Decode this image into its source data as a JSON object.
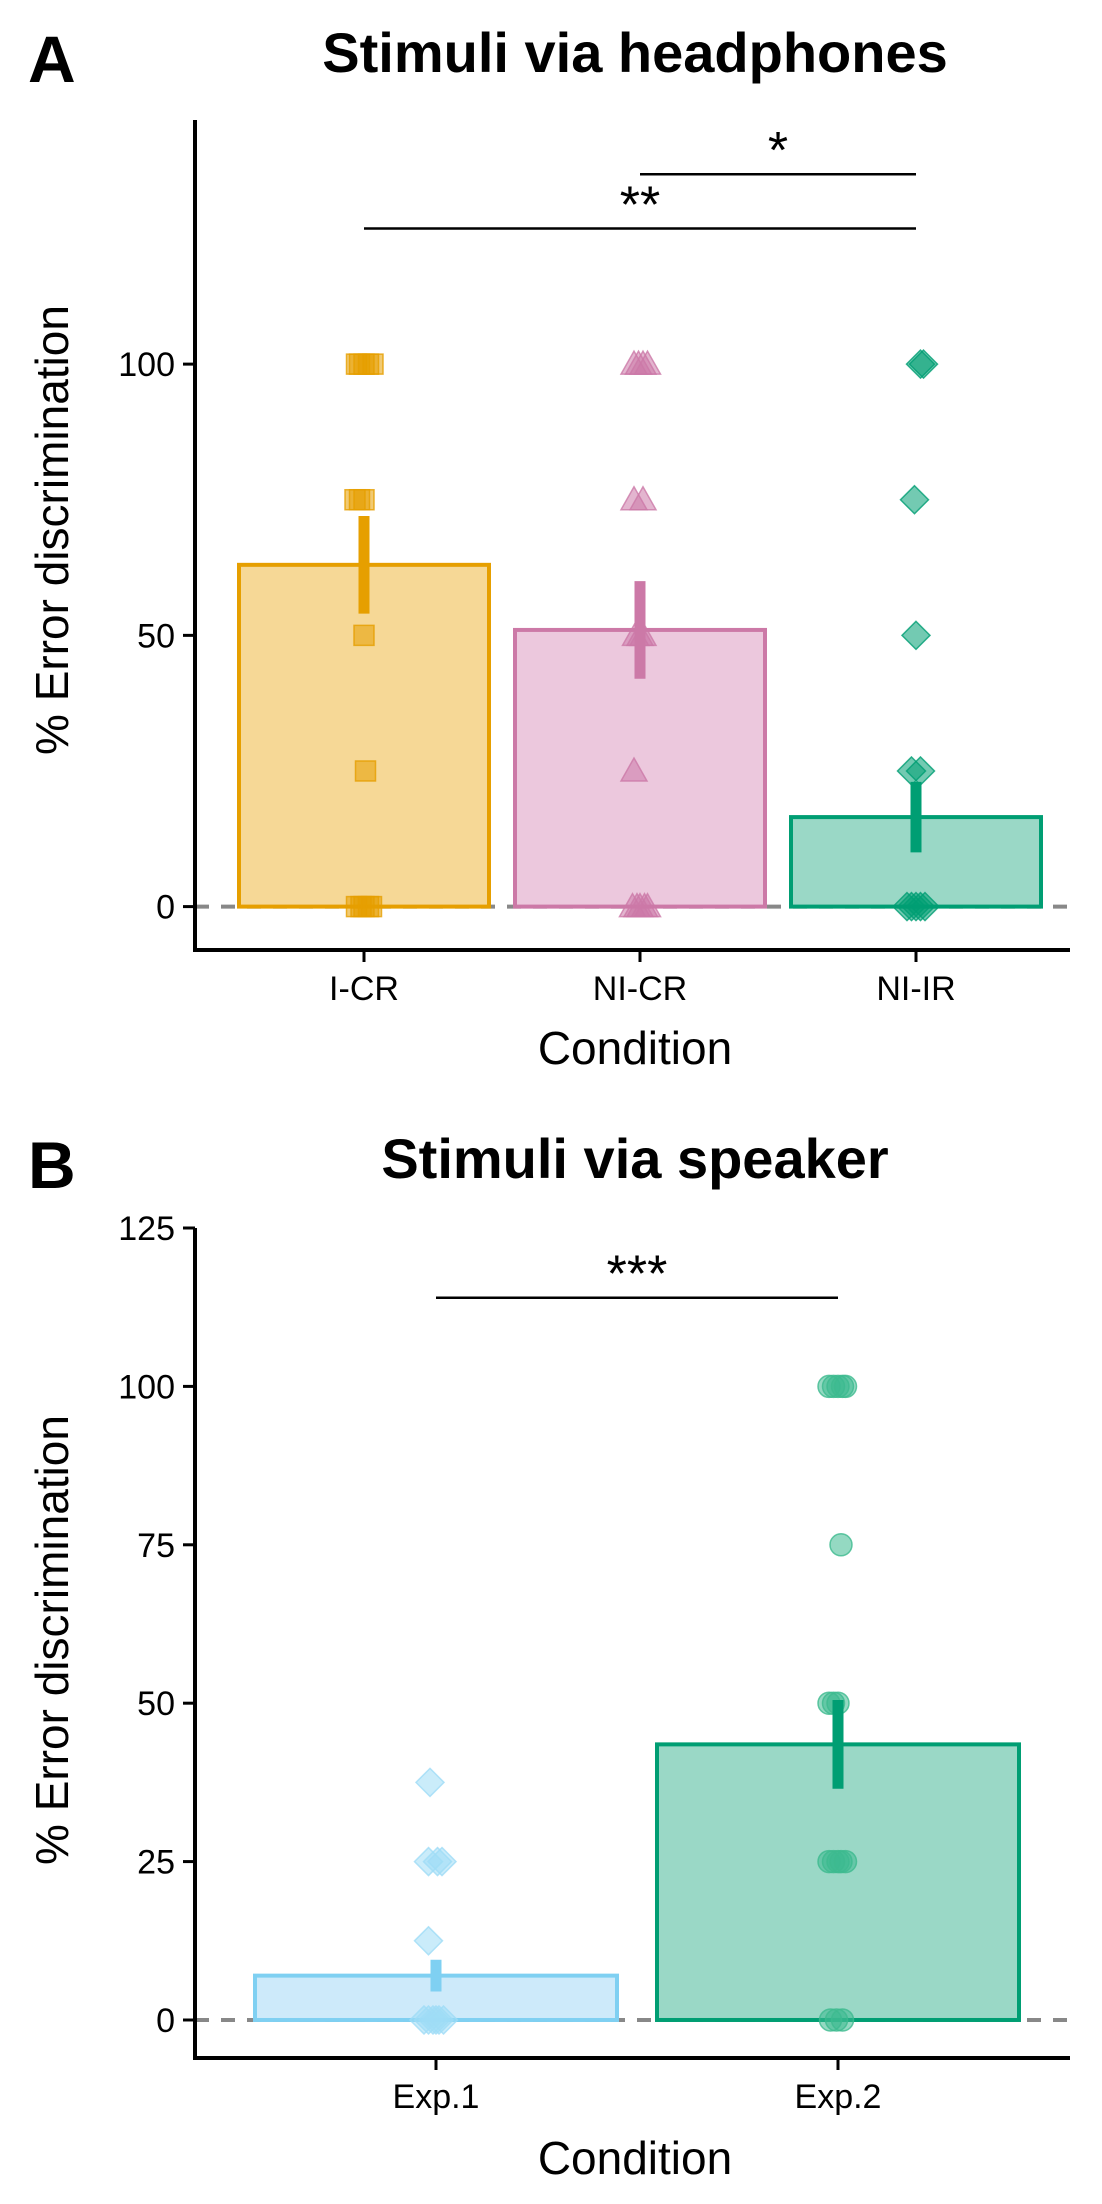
{
  "chart_data": [
    {
      "type": "bar",
      "panel": "A",
      "title": "Stimuli via headphones",
      "xlabel": "Condition",
      "ylabel": "% Error discrimination",
      "ylim": [
        -8,
        145
      ],
      "yticks": [
        0,
        50,
        100
      ],
      "categories": [
        "I-CR",
        "NI-CR",
        "NI-IR"
      ],
      "colors": {
        "I-CR": {
          "fill": "#f6d896",
          "stroke": "#e69f00",
          "point": "#e69f00"
        },
        "NI-CR": {
          "fill": "#ecc8dd",
          "stroke": "#cc79a7",
          "point": "#cc79a7"
        },
        "NI-IR": {
          "fill": "#9ad8c6",
          "stroke": "#009e73",
          "point": "#009e73"
        }
      },
      "markers": {
        "I-CR": "square",
        "NI-CR": "triangle",
        "NI-IR": "diamond"
      },
      "means": [
        63,
        51,
        16.5
      ],
      "error": [
        [
          54,
          72
        ],
        [
          42,
          60
        ],
        [
          10,
          23
        ]
      ],
      "points": {
        "I-CR": [
          [
            -0.05,
            100
          ],
          [
            -0.03,
            100
          ],
          [
            0.0,
            100
          ],
          [
            0.03,
            100
          ],
          [
            0.06,
            100
          ],
          [
            -0.06,
            75
          ],
          [
            -0.03,
            75
          ],
          [
            0.0,
            75
          ],
          [
            0.0,
            50
          ],
          [
            0.01,
            25
          ],
          [
            -0.05,
            0
          ],
          [
            -0.02,
            0
          ],
          [
            0.0,
            0
          ],
          [
            0.03,
            0
          ],
          [
            0.05,
            0
          ]
        ],
        "NI-CR": [
          [
            -0.04,
            100
          ],
          [
            -0.01,
            100
          ],
          [
            0.02,
            100
          ],
          [
            0.05,
            100
          ],
          [
            -0.04,
            75
          ],
          [
            0.02,
            75
          ],
          [
            -0.03,
            50
          ],
          [
            0.0,
            50
          ],
          [
            0.02,
            50
          ],
          [
            -0.04,
            25
          ],
          [
            -0.05,
            0
          ],
          [
            -0.02,
            0
          ],
          [
            0.0,
            0
          ],
          [
            0.03,
            0
          ],
          [
            0.05,
            0
          ]
        ],
        "NI-IR": [
          [
            0.03,
            100
          ],
          [
            0.05,
            100
          ],
          [
            -0.01,
            75
          ],
          [
            0.0,
            50
          ],
          [
            -0.03,
            25
          ],
          [
            0.03,
            25
          ],
          [
            -0.06,
            0
          ],
          [
            -0.03,
            0
          ],
          [
            0.0,
            0
          ],
          [
            0.03,
            0
          ],
          [
            0.06,
            0
          ]
        ]
      },
      "significance": [
        {
          "from": "NI-CR",
          "to": "NI-IR",
          "y": 135,
          "label": "*",
          "x_start": 1.0
        },
        {
          "from": "I-CR",
          "to": "NI-IR",
          "y": 125,
          "label": "**"
        }
      ],
      "reference_line": 0,
      "grid": false
    },
    {
      "type": "bar",
      "panel": "B",
      "title": "Stimuli via speaker",
      "xlabel": "Condition",
      "ylabel": "% Error discrimination",
      "ylim": [
        -6,
        125
      ],
      "yticks": [
        0,
        25,
        50,
        75,
        100,
        125
      ],
      "categories": [
        "Exp.1",
        "Exp.2"
      ],
      "colors": {
        "Exp.1": {
          "fill": "#cdeafa",
          "stroke": "#7fd0f2",
          "point": "#9fdcf6"
        },
        "Exp.2": {
          "fill": "#9ad8c6",
          "stroke": "#009e73",
          "point": "#3dba8f"
        }
      },
      "markers": {
        "Exp.1": "diamond",
        "Exp.2": "circle"
      },
      "means": [
        7,
        43.5
      ],
      "error": [
        [
          4.5,
          9.5
        ],
        [
          36.5,
          50.5
        ]
      ],
      "points": {
        "Exp.1": [
          [
            -0.04,
            37.5
          ],
          [
            -0.05,
            25
          ],
          [
            0.01,
            25
          ],
          [
            0.04,
            25
          ],
          [
            -0.05,
            12.5
          ],
          [
            -0.08,
            0
          ],
          [
            -0.05,
            0
          ],
          [
            -0.02,
            0
          ],
          [
            0.0,
            0
          ],
          [
            0.02,
            0
          ],
          [
            0.05,
            0
          ]
        ],
        "Exp.2": [
          [
            -0.06,
            100
          ],
          [
            -0.03,
            100
          ],
          [
            0.0,
            100
          ],
          [
            0.03,
            100
          ],
          [
            0.05,
            100
          ],
          [
            0.02,
            75
          ],
          [
            -0.06,
            50
          ],
          [
            -0.03,
            50
          ],
          [
            0.0,
            50
          ],
          [
            -0.06,
            25
          ],
          [
            -0.03,
            25
          ],
          [
            0.0,
            25
          ],
          [
            0.02,
            25
          ],
          [
            0.05,
            25
          ],
          [
            -0.05,
            0
          ],
          [
            -0.01,
            0
          ],
          [
            0.03,
            0
          ]
        ]
      },
      "significance": [
        {
          "from": "Exp.1",
          "to": "Exp.2",
          "y": 114,
          "label": "***"
        }
      ],
      "reference_line": 0,
      "grid": false
    }
  ]
}
